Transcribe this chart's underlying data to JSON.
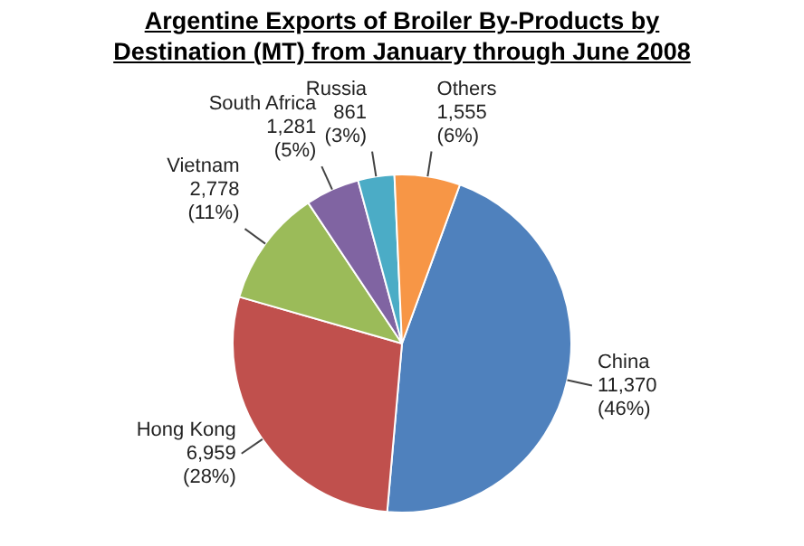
{
  "chart_data": {
    "type": "pie",
    "title": "Argentine Exports of Broiler By-Products by Destination (MT) from January through June 2008",
    "categories": [
      "China",
      "Hong Kong",
      "Vietnam",
      "South Africa",
      "Russia",
      "Others"
    ],
    "values": [
      11370,
      6959,
      2778,
      1281,
      861,
      1555
    ],
    "value_labels": [
      "11,370 (46%)",
      "6,959 (28%)",
      "2,778 (11%)",
      "1,281 (5%)",
      "861 (3%)",
      "1,555 (6%)"
    ],
    "colors": [
      "#4f81bd",
      "#c0504d",
      "#9bbb59",
      "#8064a2",
      "#4bacc6",
      "#f79646"
    ],
    "legend": false
  }
}
